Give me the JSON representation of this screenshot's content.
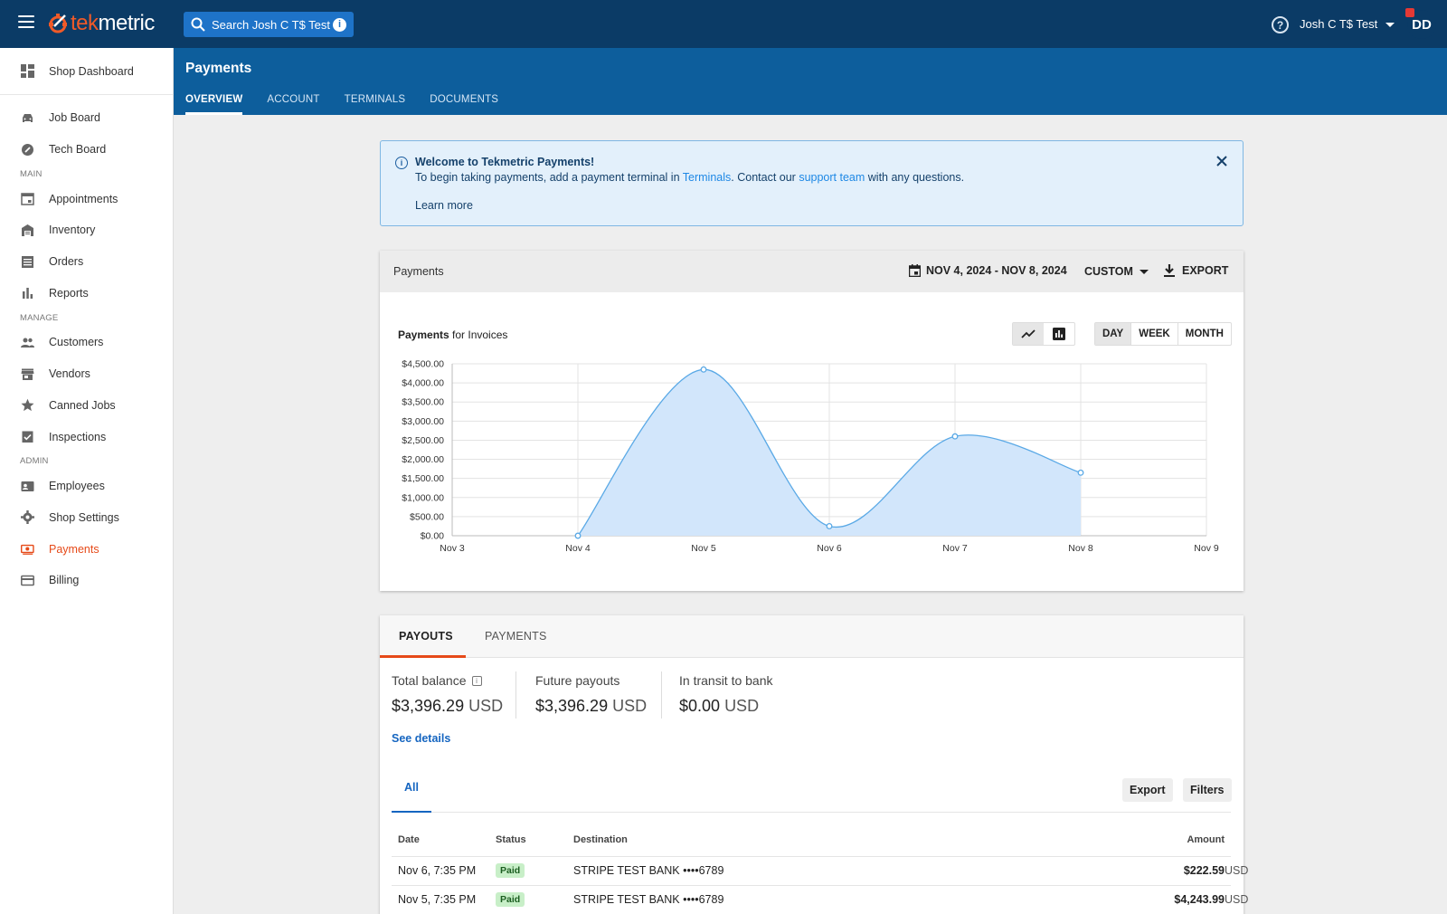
{
  "topbar": {
    "logo_part1": "tek",
    "logo_part2": "metric",
    "search_placeholder": "Search Josh C T$ Test",
    "shop_name": "Josh C T$ Test",
    "avatar_initials": "DD"
  },
  "sidebar": {
    "dashboard": "Shop Dashboard",
    "top_items": [
      {
        "label": "Job Board",
        "icon": "car-icon"
      },
      {
        "label": "Tech Board",
        "icon": "wrench-icon"
      }
    ],
    "sections": [
      {
        "heading": "MAIN",
        "items": [
          {
            "label": "Appointments",
            "icon": "calendar-icon"
          },
          {
            "label": "Inventory",
            "icon": "warehouse-icon"
          },
          {
            "label": "Orders",
            "icon": "list-icon"
          },
          {
            "label": "Reports",
            "icon": "bar-chart-icon"
          }
        ]
      },
      {
        "heading": "MANAGE",
        "items": [
          {
            "label": "Customers",
            "icon": "people-icon"
          },
          {
            "label": "Vendors",
            "icon": "store-icon"
          },
          {
            "label": "Canned Jobs",
            "icon": "star-icon"
          },
          {
            "label": "Inspections",
            "icon": "checklist-icon"
          }
        ]
      },
      {
        "heading": "ADMIN",
        "items": [
          {
            "label": "Employees",
            "icon": "badge-icon"
          },
          {
            "label": "Shop Settings",
            "icon": "gear-icon"
          },
          {
            "label": "Payments",
            "icon": "money-icon",
            "active": true
          },
          {
            "label": "Billing",
            "icon": "credit-card-icon"
          }
        ]
      }
    ]
  },
  "subheader": {
    "title": "Payments",
    "tabs": [
      "OVERVIEW",
      "ACCOUNT",
      "TERMINALS",
      "DOCUMENTS"
    ],
    "active_tab": "OVERVIEW"
  },
  "banner": {
    "title": "Welcome to Tekmetric Payments!",
    "text_1": "To begin taking payments, add a payment terminal in ",
    "link_terminals": "Terminals",
    "text_2": ". Contact our ",
    "link_support": "support team",
    "text_3": " with any questions.",
    "learn_more": "Learn more"
  },
  "chart_card": {
    "header_title": "Payments",
    "date_range": "NOV 4, 2024 - NOV 8, 2024",
    "custom_label": "CUSTOM",
    "export_label": "EXPORT",
    "chart_title_bold": "Payments",
    "chart_title_rest": " for Invoices",
    "periods": [
      "DAY",
      "WEEK",
      "MONTH"
    ],
    "active_period": "DAY"
  },
  "chart_data": {
    "type": "area",
    "title": "Payments for Invoices",
    "x": [
      "Nov 3",
      "Nov 4",
      "Nov 5",
      "Nov 6",
      "Nov 7",
      "Nov 8",
      "Nov 9"
    ],
    "series": [
      {
        "values": [
          null,
          0,
          4350,
          250,
          2600,
          1650,
          null
        ]
      }
    ],
    "y_ticks": [
      "$0.00",
      "$500.00",
      "$1,000.00",
      "$1,500.00",
      "$2,000.00",
      "$2,500.00",
      "$3,000.00",
      "$3,500.00",
      "$4,000.00",
      "$4,500.00"
    ],
    "ylim": [
      0,
      4500
    ],
    "grid": true,
    "color": "#5aa9e6",
    "fill": "#d2e6fb"
  },
  "payouts": {
    "tabs": [
      "PAYOUTS",
      "PAYMENTS"
    ],
    "total_balance_label": "Total balance",
    "total_balance": "$3,396.29",
    "future_label": "Future payouts",
    "future": "$3,396.29",
    "transit_label": "In transit to bank",
    "transit": "$0.00",
    "currency": "USD",
    "see_details": "See details",
    "subtab_all": "All",
    "export_btn": "Export",
    "filters_btn": "Filters",
    "columns": [
      "Date",
      "Status",
      "Destination",
      "Amount"
    ],
    "rows": [
      {
        "date": "Nov 6, 7:35 PM",
        "status": "Paid",
        "destination": "STRIPE TEST BANK ••••6789",
        "amount": "$222.59",
        "currency": "USD"
      },
      {
        "date": "Nov 5, 7:35 PM",
        "status": "Paid",
        "destination": "STRIPE TEST BANK ••••6789",
        "amount": "$4,243.99",
        "currency": "USD"
      }
    ]
  }
}
